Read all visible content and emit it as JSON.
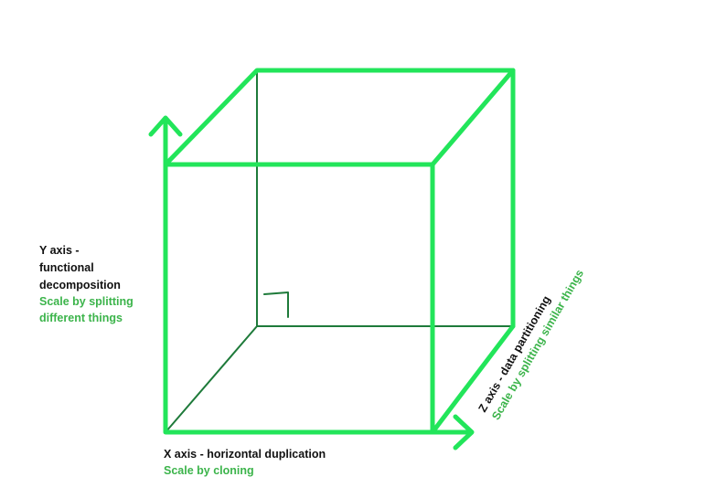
{
  "colors": {
    "edge_bright": "#22E55A",
    "edge_dark": "#1E7A3A",
    "text_dark": "#111111",
    "text_green": "#3CB44B"
  },
  "y_axis": {
    "title_lines": [
      "Y axis -",
      "functional",
      "decomposition"
    ],
    "subtitle_lines": [
      "Scale by splitting",
      "different things"
    ]
  },
  "x_axis": {
    "title": "X axis - horizontal duplication",
    "subtitle": "Scale by cloning"
  },
  "z_axis": {
    "title": "Z axis - data partitioning",
    "subtitle": "Scale by splitting similar things"
  }
}
